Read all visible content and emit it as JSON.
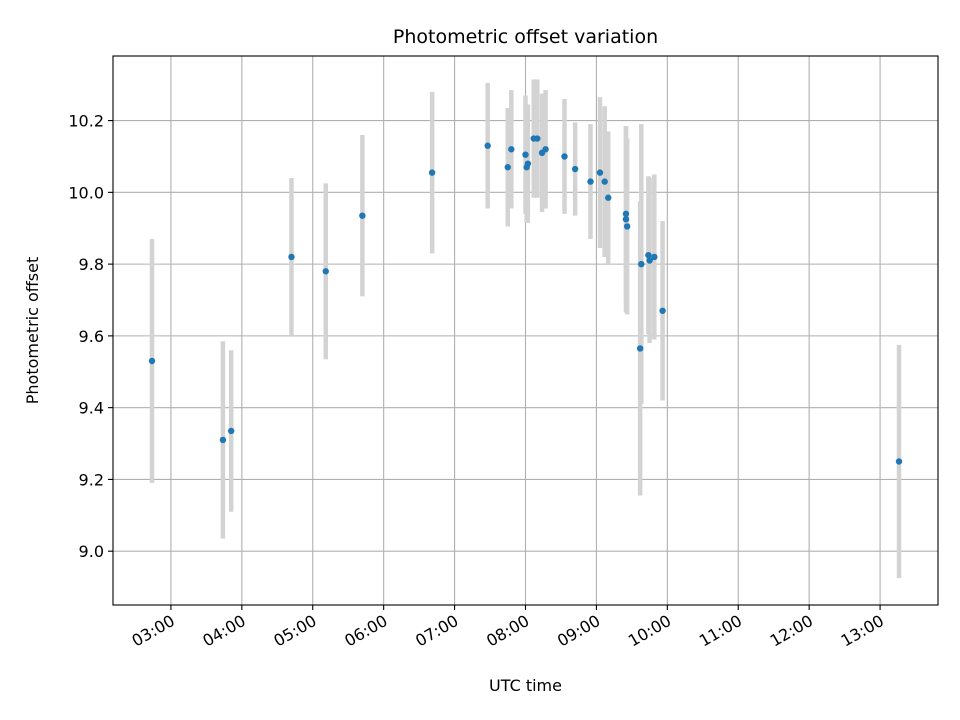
{
  "chart_data": {
    "type": "scatter",
    "title": "Photometric offset variation",
    "xlabel": "UTC time",
    "ylabel": "Photometric offset",
    "xlim": [
      "02:11",
      "13:49"
    ],
    "ylim": [
      8.85,
      10.38
    ],
    "xticks": [
      "03:00",
      "04:00",
      "05:00",
      "06:00",
      "07:00",
      "08:00",
      "09:00",
      "10:00",
      "11:00",
      "12:00",
      "13:00"
    ],
    "yticks": [
      9.0,
      9.2,
      9.4,
      9.6,
      9.8,
      10.0,
      10.2
    ],
    "grid": true,
    "marker_color": "#1f77b4",
    "errorbar_color": "#d3d3d3",
    "points": [
      {
        "time": "02:44",
        "value": 9.53,
        "error": 0.34
      },
      {
        "time": "03:44",
        "value": 9.31,
        "error": 0.275
      },
      {
        "time": "03:51",
        "value": 9.335,
        "error": 0.225
      },
      {
        "time": "04:42",
        "value": 9.82,
        "error": 0.22
      },
      {
        "time": "05:11",
        "value": 9.78,
        "error": 0.245
      },
      {
        "time": "05:42",
        "value": 9.935,
        "error": 0.225
      },
      {
        "time": "06:41",
        "value": 10.055,
        "error": 0.225
      },
      {
        "time": "07:28",
        "value": 10.13,
        "error": 0.175
      },
      {
        "time": "07:45",
        "value": 10.07,
        "error": 0.165
      },
      {
        "time": "07:48",
        "value": 10.12,
        "error": 0.165
      },
      {
        "time": "08:00",
        "value": 10.105,
        "error": 0.165
      },
      {
        "time": "08:01",
        "value": 10.07,
        "error": 0.155
      },
      {
        "time": "08:02",
        "value": 10.08,
        "error": 0.165
      },
      {
        "time": "08:07",
        "value": 10.15,
        "error": 0.165
      },
      {
        "time": "08:10",
        "value": 10.15,
        "error": 0.165
      },
      {
        "time": "08:14",
        "value": 10.11,
        "error": 0.165
      },
      {
        "time": "08:17",
        "value": 10.12,
        "error": 0.165
      },
      {
        "time": "08:33",
        "value": 10.1,
        "error": 0.16
      },
      {
        "time": "08:42",
        "value": 10.065,
        "error": 0.13
      },
      {
        "time": "08:55",
        "value": 10.03,
        "error": 0.16
      },
      {
        "time": "09:03",
        "value": 10.055,
        "error": 0.21
      },
      {
        "time": "09:07",
        "value": 10.03,
        "error": 0.21
      },
      {
        "time": "09:10",
        "value": 9.985,
        "error": 0.185
      },
      {
        "time": "09:25",
        "value": 9.94,
        "error": 0.245
      },
      {
        "time": "09:25",
        "value": 9.925,
        "error": 0.26
      },
      {
        "time": "09:26",
        "value": 9.905,
        "error": 0.245
      },
      {
        "time": "09:37",
        "value": 9.565,
        "error": 0.41
      },
      {
        "time": "09:38",
        "value": 9.8,
        "error": 0.39
      },
      {
        "time": "09:44",
        "value": 9.825,
        "error": 0.22
      },
      {
        "time": "09:45",
        "value": 9.81,
        "error": 0.23
      },
      {
        "time": "09:49",
        "value": 9.82,
        "error": 0.23
      },
      {
        "time": "09:56",
        "value": 9.67,
        "error": 0.25
      },
      {
        "time": "13:16",
        "value": 9.25,
        "error": 0.325
      }
    ]
  }
}
